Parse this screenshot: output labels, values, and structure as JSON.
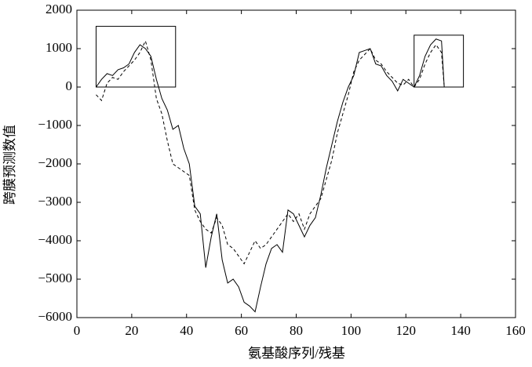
{
  "chart_data": {
    "type": "line",
    "xlabel": "氨基酸序列/残基",
    "ylabel": "跨膜预测数值",
    "x": [
      7,
      9,
      11,
      13,
      15,
      17,
      19,
      21,
      23,
      25,
      27,
      29,
      31,
      33,
      35,
      37,
      39,
      41,
      43,
      45,
      47,
      49,
      51,
      53,
      55,
      57,
      59,
      61,
      63,
      65,
      67,
      69,
      71,
      73,
      75,
      77,
      79,
      81,
      83,
      85,
      87,
      89,
      91,
      93,
      95,
      97,
      99,
      101,
      103,
      105,
      107,
      109,
      111,
      113,
      115,
      117,
      119,
      121,
      123,
      125,
      127,
      129,
      131,
      133,
      134
    ],
    "series": [
      {
        "color": "#000000",
        "dash": "solid",
        "values": [
          0,
          200,
          350,
          300,
          450,
          500,
          600,
          900,
          1100,
          1000,
          800,
          200,
          -300,
          -600,
          -1100,
          -1000,
          -1600,
          -2000,
          -3100,
          -3300,
          -4700,
          -3900,
          -3300,
          -4500,
          -5100,
          -5000,
          -5200,
          -5600,
          -5700,
          -5850,
          -5200,
          -4600,
          -4200,
          -4100,
          -4300,
          -3200,
          -3300,
          -3600,
          -3900,
          -3600,
          -3400,
          -2800,
          -2100,
          -1500,
          -900,
          -400,
          0,
          300,
          900,
          950,
          1000,
          600,
          550,
          300,
          150,
          -100,
          200,
          100,
          0,
          300,
          800,
          1100,
          1250,
          1200,
          0
        ]
      },
      {
        "color": "#000000",
        "dash": "dashed",
        "values": [
          -200,
          -350,
          100,
          250,
          200,
          400,
          550,
          700,
          900,
          1200,
          700,
          -300,
          -700,
          -1400,
          -2000,
          -2100,
          -2200,
          -2300,
          -3200,
          -3500,
          -3700,
          -3800,
          -3400,
          -3600,
          -4100,
          -4200,
          -4400,
          -4600,
          -4300,
          -4000,
          -4200,
          -4100,
          -3900,
          -3700,
          -3500,
          -3300,
          -3500,
          -3300,
          -3700,
          -3300,
          -3100,
          -2900,
          -2400,
          -1900,
          -1200,
          -700,
          -200,
          400,
          700,
          850,
          1000,
          700,
          600,
          400,
          250,
          100,
          50,
          200,
          0,
          200,
          600,
          900,
          1100,
          900,
          0
        ]
      }
    ],
    "highlight_boxes": [
      {
        "x": [
          7,
          36
        ],
        "y": [
          0,
          1580
        ]
      },
      {
        "x": [
          123,
          141
        ],
        "y": [
          0,
          1350
        ]
      }
    ],
    "xlim": [
      0,
      160
    ],
    "xticks": [
      0,
      20,
      40,
      60,
      80,
      100,
      120,
      140,
      160
    ],
    "ylim": [
      -6000,
      2000
    ],
    "yticks": [
      {
        "value": -6000,
        "label": "−6000"
      },
      {
        "value": -5000,
        "label": "−5000"
      },
      {
        "value": -4000,
        "label": "−4000"
      },
      {
        "value": -3000,
        "label": "−3000"
      },
      {
        "value": -2000,
        "label": "−2000"
      },
      {
        "value": -1000,
        "label": "−1000"
      },
      0,
      1000,
      2000
    ]
  }
}
